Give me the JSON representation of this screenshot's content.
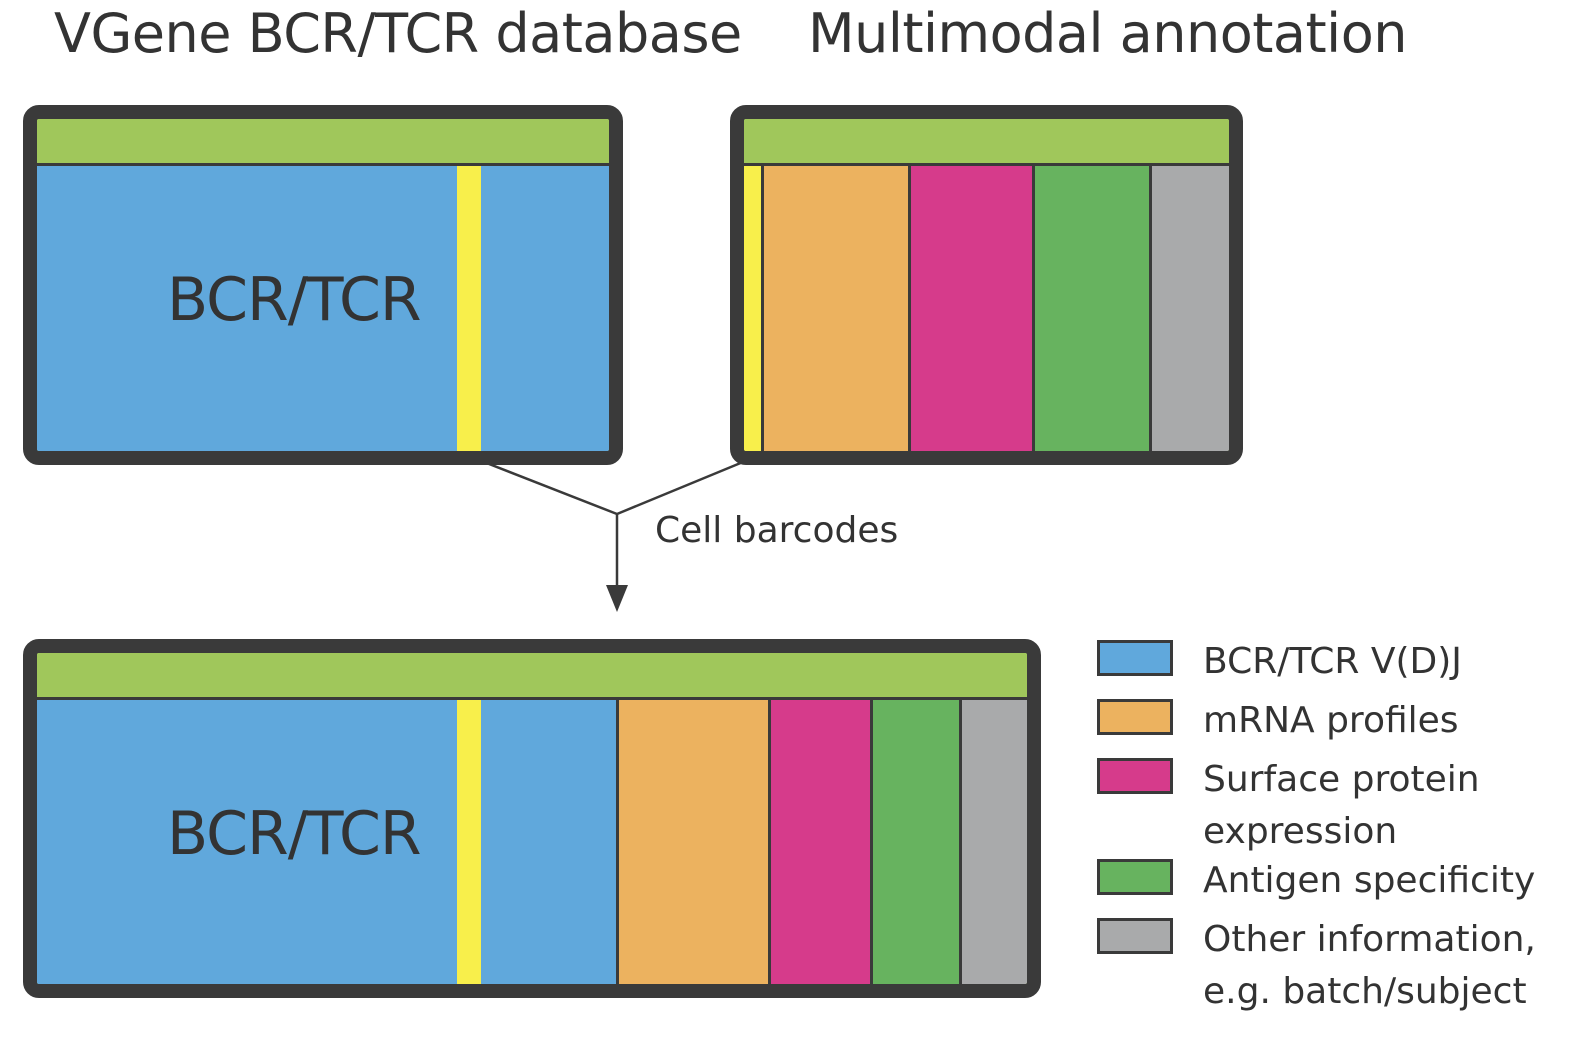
{
  "headings": {
    "left": "VGene BCR/TCR database",
    "right": "Multimodal annotation"
  },
  "blocks": {
    "vgene_label": "BCR/TCR",
    "merged_label": "BCR/TCR"
  },
  "connector": {
    "label": "Cell barcodes"
  },
  "legend": {
    "items": [
      {
        "label": "BCR/TCR V(D)J",
        "color": "#60a8dc"
      },
      {
        "label": "mRNA profiles",
        "color": "#ecb25f"
      },
      {
        "label": "Surface protein expression",
        "line1": "Surface protein",
        "line2": "expression",
        "color": "#d63b8b"
      },
      {
        "label": "Antigen specificity",
        "color": "#67b35f"
      },
      {
        "label": "Other information, e.g. batch/subject",
        "line1": "Other information,",
        "line2": "e.g. batch/subject",
        "color": "#a9aaab"
      }
    ]
  },
  "colors": {
    "header_bar": "#a0c75b",
    "barcode_stripe": "#f8ef4b",
    "border": "#3a3a3a"
  }
}
